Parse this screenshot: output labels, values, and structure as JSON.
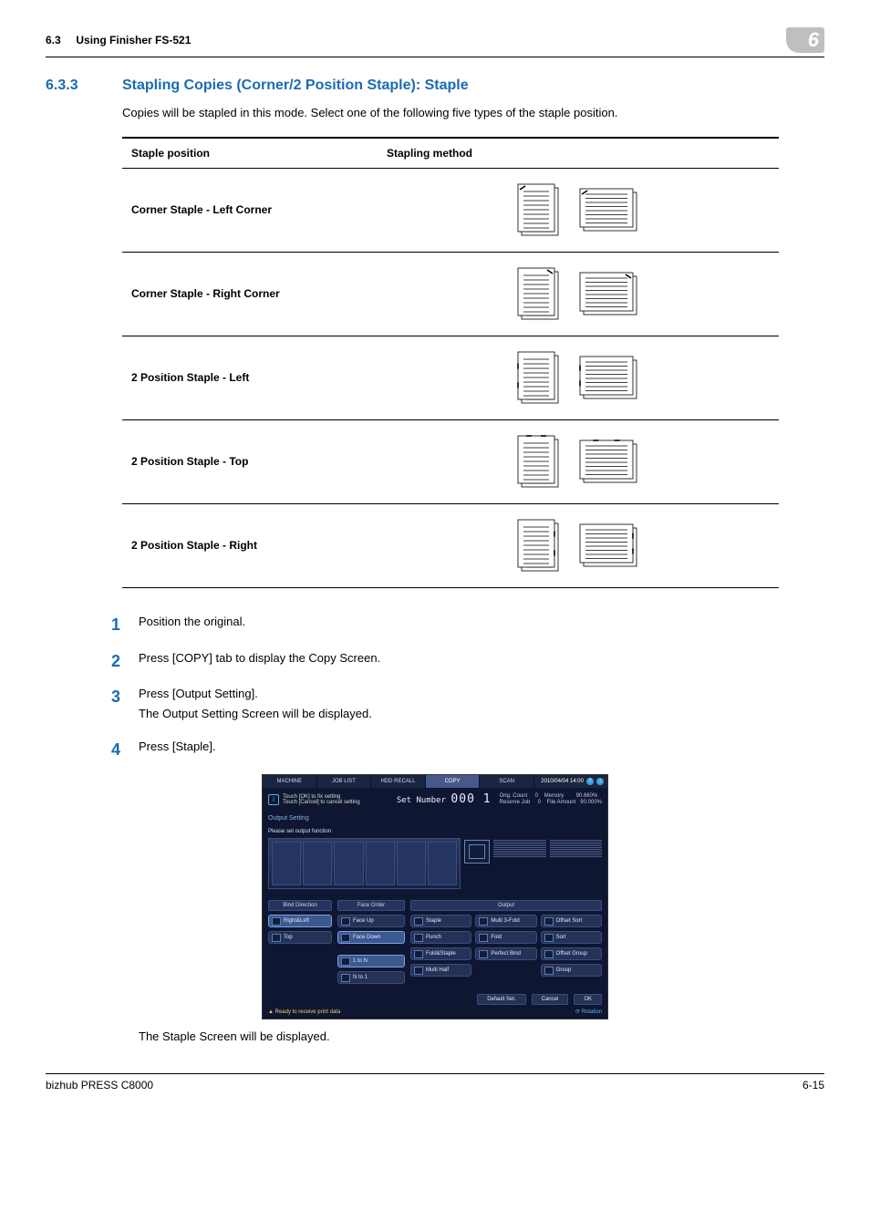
{
  "header": {
    "section_number": "6.3",
    "section_name": "Using Finisher FS-521",
    "chapter_badge": "6"
  },
  "heading": {
    "number": "6.3.3",
    "title": "Stapling Copies (Corner/2 Position Staple): Staple"
  },
  "intro": "Copies will be stapled in this mode. Select one of the following five types of the staple position.",
  "table": {
    "col1": "Staple position",
    "col2": "Stapling method",
    "rows": [
      {
        "label": "Corner Staple - Left Corner",
        "variant": "corner_left"
      },
      {
        "label": "Corner Staple - Right Corner",
        "variant": "corner_right"
      },
      {
        "label": "2 Position Staple - Left",
        "variant": "two_left"
      },
      {
        "label": "2 Position Staple - Top",
        "variant": "two_top"
      },
      {
        "label": "2 Position Staple - Right",
        "variant": "two_right"
      }
    ]
  },
  "steps": [
    {
      "n": "1",
      "lines": [
        "Position the original."
      ]
    },
    {
      "n": "2",
      "lines": [
        "Press [COPY] tab to display the Copy Screen."
      ]
    },
    {
      "n": "3",
      "lines": [
        "Press [Output Setting].",
        "The Output Setting Screen will be displayed."
      ]
    },
    {
      "n": "4",
      "lines": [
        "Press [Staple]."
      ]
    }
  ],
  "screenshot": {
    "tabs": [
      "MACHINE",
      "JOB LIST",
      "HDD RECALL",
      "COPY",
      "SCAN"
    ],
    "clock": "2010/04/04 14:00",
    "info_line1": "Touch [OK] to fix setting",
    "info_line2": "Touch [Cancel] to cancel setting",
    "set_number_label": "Set Number",
    "set_number_value": "000 1",
    "right_lines": "Orig. Count     0    Memory        90.660%\nReserve Job     0    File Amount   90.000%",
    "subheader": "Output Setting",
    "prompt": "Please set output function",
    "group_bind": "Bind Direction",
    "group_face": "Face Order",
    "group_output": "Output",
    "bind_buttons": [
      "Right&Left",
      "Top"
    ],
    "face_buttons": [
      "Face Up",
      "Face Down",
      "1 to N",
      "N to 1"
    ],
    "output_buttons": [
      "Staple",
      "Multi 3-Fold",
      "Offset Sort",
      "Punch",
      "Fold",
      "Sort",
      "Fold&Staple",
      "Perfect Bind",
      "Offset Group",
      "Multi Half"
    ],
    "output_extra": "Group",
    "bottom_buttons": [
      "Default Set.",
      "Cancel",
      "OK"
    ],
    "status_left": "▲ Ready to receive print data",
    "status_right": "⟳ Rotation"
  },
  "after_shot": "The Staple Screen will be displayed.",
  "footer": {
    "left": "bizhub PRESS C8000",
    "right": "6-15"
  },
  "colors": {
    "accent": "#1a6bb3",
    "panel_bg": "#0e1631"
  }
}
